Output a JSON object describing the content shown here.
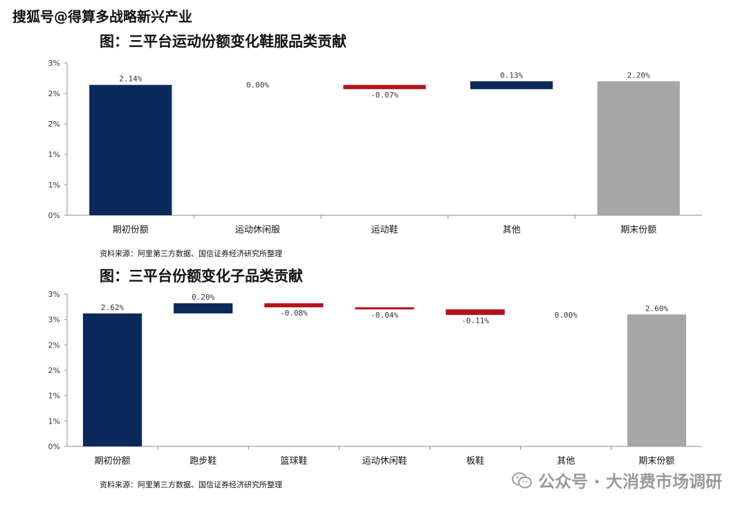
{
  "watermark_top": "搜狐号@得算多战略新兴产业",
  "watermark_bottom": "公众号 · 大消费市场调研",
  "colors": {
    "navy": "#0b2a5b",
    "red": "#b3131b",
    "gray": "#a6a6a6"
  },
  "chart_data": [
    {
      "type": "waterfall",
      "title": "图：三平台运动份额变化鞋服品类贡献",
      "source": "资料来源：阿里第三方数据、国信证券经济研究所整理",
      "y_tick_labels": [
        "0%",
        "1%",
        "1%",
        "2%",
        "2%",
        "3%"
      ],
      "ylim": [
        0,
        2.5
      ],
      "categories": [
        "期初份额",
        "运动休闲服",
        "运动鞋",
        "其他",
        "期末份额"
      ],
      "values": [
        2.14,
        0.0,
        -0.07,
        0.13,
        2.2
      ],
      "labels": [
        "2.14%",
        "0.00%",
        "-0.07%",
        "0.13%",
        "2.20%"
      ],
      "kinds": [
        "total",
        "delta",
        "delta",
        "delta",
        "total"
      ]
    },
    {
      "type": "waterfall",
      "title": "图：三平台份额变化子品类贡献",
      "source": "资料来源：阿里第三方数据、国信证券经济研究所整理",
      "y_tick_labels": [
        "0%",
        "1%",
        "1%",
        "2%",
        "2%",
        "3%",
        "3%"
      ],
      "ylim": [
        0,
        3.0
      ],
      "categories": [
        "期初份额",
        "跑步鞋",
        "篮球鞋",
        "运动休闲鞋",
        "板鞋",
        "其他",
        "期末份额"
      ],
      "values": [
        2.62,
        0.2,
        -0.08,
        -0.04,
        -0.11,
        0.0,
        2.6
      ],
      "labels": [
        "2.62%",
        "0.20%",
        "-0.08%",
        "-0.04%",
        "-0.11%",
        "0.00%",
        "2.60%"
      ],
      "kinds": [
        "total",
        "delta",
        "delta",
        "delta",
        "delta",
        "delta",
        "total"
      ]
    }
  ]
}
